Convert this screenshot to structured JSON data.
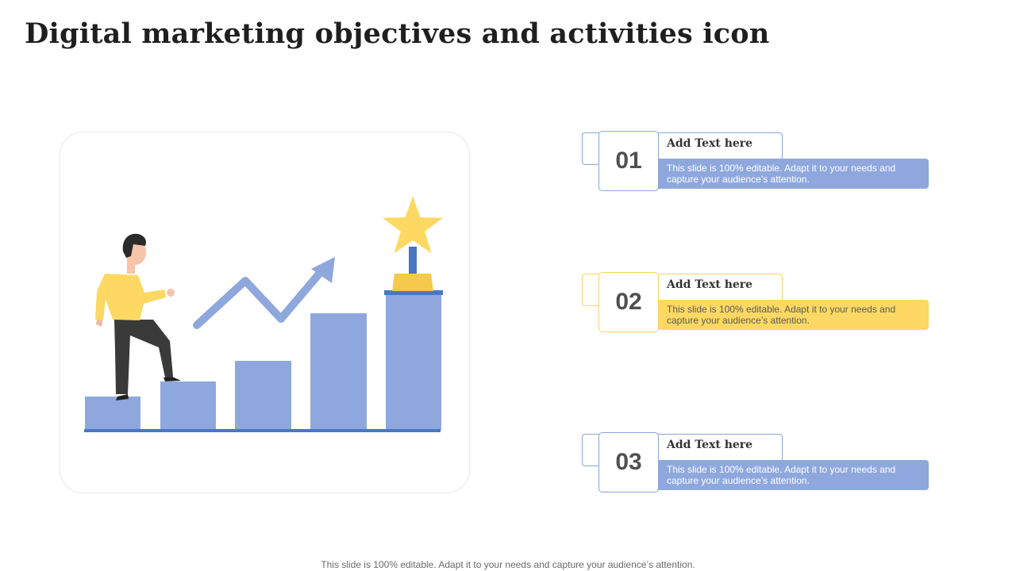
{
  "title": "Digital marketing objectives and activities icon",
  "colors": {
    "blue": "#8ea8dd",
    "dark_blue": "#4a76c2",
    "yellow": "#fdd862",
    "gold": "#f5c94a"
  },
  "illustration": {
    "icons": [
      "person-climbing-icon",
      "trend-arrow-icon",
      "star-trophy-icon"
    ],
    "steps_count": 5
  },
  "items": [
    {
      "number": "01",
      "heading": "Add Text here",
      "text": "This slide is 100% editable. Adapt it to your needs and capture your audience’s attention.",
      "color": "blue"
    },
    {
      "number": "02",
      "heading": "Add Text here",
      "text": "This slide is 100% editable. Adapt it to your needs and capture your audience’s attention.",
      "color": "yellow"
    },
    {
      "number": "03",
      "heading": "Add Text here",
      "text": "This slide is 100% editable. Adapt it to your needs and capture your audience’s attention.",
      "color": "blue"
    }
  ],
  "footer": "This slide is 100% editable. Adapt it to your needs and capture your audience’s attention."
}
